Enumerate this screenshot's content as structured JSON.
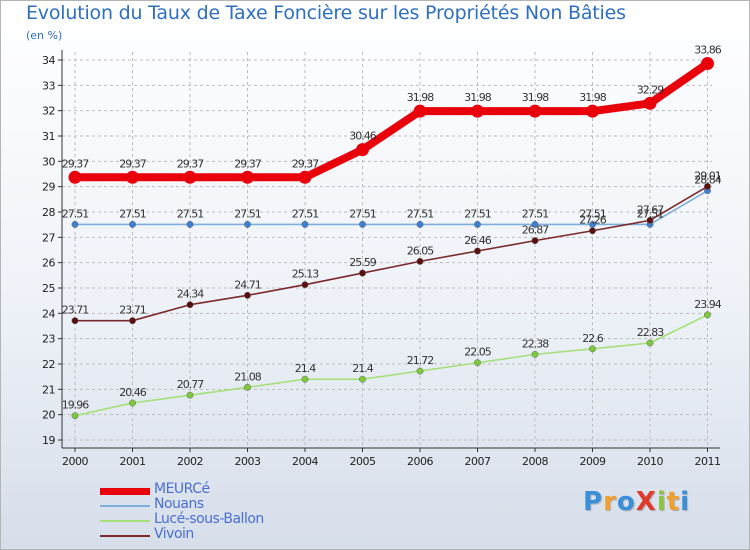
{
  "title": "Evolution du Taux de Taxe Foncière sur les Propriétés Non Bâties",
  "subtitle": "(en %)",
  "logo": {
    "text": "ProXiti",
    "letters": [
      "P",
      "r",
      "o",
      "X",
      "i",
      "t",
      "i"
    ],
    "colors": [
      "#3a8fd9",
      "#f0a030",
      "#3a8fd9",
      "#e03a2a",
      "#8cc63e",
      "#f0a030",
      "#3a8fd9"
    ]
  },
  "chart_data": {
    "type": "line",
    "title": "Evolution du Taux de Taxe Foncière sur les Propriétés Non Bâties",
    "ylabel": "(en %)",
    "xlabel": "",
    "categories": [
      "2000",
      "2001",
      "2002",
      "2003",
      "2004",
      "2005",
      "2006",
      "2007",
      "2008",
      "2009",
      "2010",
      "2011"
    ],
    "ylim": [
      19,
      34
    ],
    "yticks": [
      19,
      20,
      21,
      22,
      23,
      24,
      25,
      26,
      27,
      28,
      29,
      30,
      31,
      32,
      33,
      34
    ],
    "series": [
      {
        "name": "MEURCé",
        "color": "#e8000b",
        "markerFill": "#e8000b",
        "emphasis": true,
        "values": [
          29.37,
          29.37,
          29.37,
          29.37,
          29.37,
          30.46,
          31.98,
          31.98,
          31.98,
          31.98,
          32.29,
          33.86
        ],
        "labels": [
          "29.37",
          "29.37",
          "29.37",
          "29.37",
          "29.37",
          "30.46",
          "31.98",
          "31.98",
          "31.98",
          "31.98",
          "32.29",
          "33.86"
        ]
      },
      {
        "name": "Nouans",
        "color": "#7eaedc",
        "markerFill": "#3d7fd0",
        "emphasis": false,
        "values": [
          27.51,
          27.51,
          27.51,
          27.51,
          27.51,
          27.51,
          27.51,
          27.51,
          27.51,
          27.51,
          27.51,
          28.84
        ],
        "labels": [
          "27.51",
          "27.51",
          "27.51",
          "27.51",
          "27.51",
          "27.51",
          "27.51",
          "27.51",
          "27.51",
          "27.51",
          "27.51",
          "28.84"
        ]
      },
      {
        "name": "Lucé-sous-Ballon",
        "color": "#a6e07a",
        "markerFill": "#7ec83c",
        "emphasis": false,
        "values": [
          19.96,
          20.46,
          20.77,
          21.08,
          21.4,
          21.4,
          21.72,
          22.05,
          22.38,
          22.6,
          22.83,
          23.94
        ],
        "labels": [
          "19.96",
          "20.46",
          "20.77",
          "21.08",
          "21.4",
          "21.4",
          "21.72",
          "22.05",
          "22.38",
          "22.6",
          "22.83",
          "23.94"
        ]
      },
      {
        "name": "Vivoin",
        "color": "#7a2a2a",
        "markerFill": "#5a1010",
        "emphasis": false,
        "values": [
          23.71,
          23.71,
          24.34,
          24.71,
          25.13,
          25.59,
          26.05,
          26.46,
          26.87,
          27.26,
          27.67,
          29.01
        ],
        "labels": [
          "23.71",
          "23.71",
          "24.34",
          "24.71",
          "25.13",
          "25.59",
          "26.05",
          "26.46",
          "26.87",
          "27.26",
          "27.67",
          "29.01"
        ]
      }
    ]
  }
}
